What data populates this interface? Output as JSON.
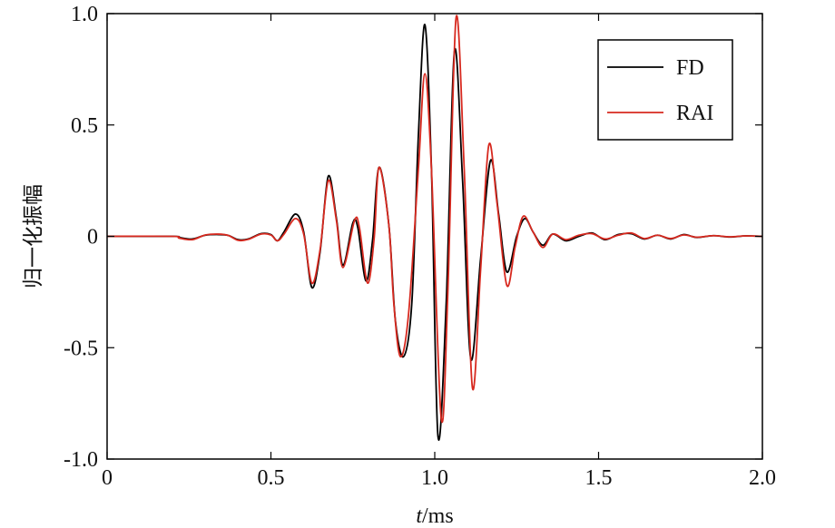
{
  "chart_data": {
    "type": "line",
    "title": "",
    "xlabel_var": "t",
    "xlabel_unit": "/ms",
    "ylabel": "归一化振幅",
    "xlim": [
      0,
      2.0
    ],
    "ylim": [
      -1.0,
      1.0
    ],
    "x_ticks": [
      0,
      0.5,
      1.0,
      1.5,
      2.0
    ],
    "x_tick_labels": [
      "0",
      "0.5",
      "1.0",
      "1.5",
      "2.0"
    ],
    "y_ticks": [
      -1.0,
      -0.5,
      0,
      0.5,
      1.0
    ],
    "y_tick_labels": [
      "-1.0",
      "-0.5",
      "0",
      "0.5",
      "1.0"
    ],
    "grid": false,
    "legend_position": "top-right",
    "series": [
      {
        "name": "FD",
        "color": "#000000",
        "points": [
          [
            0.0,
            0.0
          ],
          [
            0.2,
            0.0
          ],
          [
            0.22,
            -0.005
          ],
          [
            0.26,
            -0.012
          ],
          [
            0.3,
            0.005
          ],
          [
            0.34,
            0.008
          ],
          [
            0.37,
            0.004
          ],
          [
            0.4,
            -0.015
          ],
          [
            0.43,
            -0.012
          ],
          [
            0.47,
            0.012
          ],
          [
            0.5,
            0.008
          ],
          [
            0.52,
            -0.02
          ],
          [
            0.54,
            0.02
          ],
          [
            0.575,
            0.1
          ],
          [
            0.6,
            0.02
          ],
          [
            0.625,
            -0.23
          ],
          [
            0.65,
            -0.07
          ],
          [
            0.675,
            0.27
          ],
          [
            0.7,
            0.08
          ],
          [
            0.72,
            -0.13
          ],
          [
            0.75,
            0.06
          ],
          [
            0.765,
            0.04
          ],
          [
            0.79,
            -0.2
          ],
          [
            0.81,
            -0.02
          ],
          [
            0.83,
            0.31
          ],
          [
            0.86,
            0.05
          ],
          [
            0.88,
            -0.38
          ],
          [
            0.905,
            -0.54
          ],
          [
            0.93,
            -0.3
          ],
          [
            0.95,
            0.45
          ],
          [
            0.97,
            0.95
          ],
          [
            0.99,
            0.3
          ],
          [
            1.01,
            -0.9
          ],
          [
            1.035,
            -0.3
          ],
          [
            1.06,
            0.83
          ],
          [
            1.085,
            0.25
          ],
          [
            1.11,
            -0.55
          ],
          [
            1.14,
            -0.1
          ],
          [
            1.17,
            0.34
          ],
          [
            1.195,
            0.1
          ],
          [
            1.22,
            -0.16
          ],
          [
            1.25,
            0.0
          ],
          [
            1.275,
            0.08
          ],
          [
            1.3,
            0.02
          ],
          [
            1.33,
            -0.04
          ],
          [
            1.36,
            0.01
          ],
          [
            1.4,
            -0.02
          ],
          [
            1.44,
            0.0
          ],
          [
            1.48,
            0.015
          ],
          [
            1.52,
            -0.015
          ],
          [
            1.56,
            0.008
          ],
          [
            1.6,
            0.012
          ],
          [
            1.64,
            -0.012
          ],
          [
            1.68,
            0.005
          ],
          [
            1.72,
            -0.012
          ],
          [
            1.76,
            0.008
          ],
          [
            1.8,
            -0.005
          ],
          [
            1.85,
            0.003
          ],
          [
            1.9,
            -0.003
          ],
          [
            1.95,
            0.002
          ],
          [
            2.0,
            0.0
          ]
        ]
      },
      {
        "name": "RAI",
        "color": "#d7291f",
        "points": [
          [
            0.0,
            0.0
          ],
          [
            0.2,
            0.0
          ],
          [
            0.22,
            -0.008
          ],
          [
            0.26,
            -0.015
          ],
          [
            0.3,
            0.006
          ],
          [
            0.34,
            0.01
          ],
          [
            0.37,
            0.004
          ],
          [
            0.4,
            -0.018
          ],
          [
            0.43,
            -0.014
          ],
          [
            0.47,
            0.01
          ],
          [
            0.5,
            0.006
          ],
          [
            0.52,
            -0.02
          ],
          [
            0.54,
            0.01
          ],
          [
            0.575,
            0.08
          ],
          [
            0.6,
            0.01
          ],
          [
            0.625,
            -0.21
          ],
          [
            0.65,
            -0.06
          ],
          [
            0.675,
            0.25
          ],
          [
            0.7,
            0.07
          ],
          [
            0.72,
            -0.14
          ],
          [
            0.755,
            0.07
          ],
          [
            0.77,
            0.04
          ],
          [
            0.795,
            -0.21
          ],
          [
            0.815,
            -0.01
          ],
          [
            0.83,
            0.31
          ],
          [
            0.86,
            0.05
          ],
          [
            0.875,
            -0.3
          ],
          [
            0.895,
            -0.54
          ],
          [
            0.92,
            -0.35
          ],
          [
            0.95,
            0.3
          ],
          [
            0.97,
            0.73
          ],
          [
            0.99,
            0.3
          ],
          [
            1.02,
            -0.82
          ],
          [
            1.04,
            -0.25
          ],
          [
            1.065,
            0.98
          ],
          [
            1.09,
            0.3
          ],
          [
            1.115,
            -0.68
          ],
          [
            1.14,
            -0.15
          ],
          [
            1.165,
            0.41
          ],
          [
            1.19,
            0.15
          ],
          [
            1.22,
            -0.22
          ],
          [
            1.245,
            -0.05
          ],
          [
            1.27,
            0.09
          ],
          [
            1.3,
            0.02
          ],
          [
            1.33,
            -0.05
          ],
          [
            1.36,
            0.01
          ],
          [
            1.4,
            -0.015
          ],
          [
            1.44,
            0.005
          ],
          [
            1.48,
            0.012
          ],
          [
            1.52,
            -0.012
          ],
          [
            1.56,
            0.005
          ],
          [
            1.6,
            0.015
          ],
          [
            1.64,
            -0.01
          ],
          [
            1.68,
            0.005
          ],
          [
            1.72,
            -0.01
          ],
          [
            1.76,
            0.006
          ],
          [
            1.8,
            -0.004
          ],
          [
            1.85,
            0.003
          ],
          [
            1.9,
            -0.002
          ],
          [
            1.95,
            0.002
          ],
          [
            2.0,
            0.0
          ]
        ]
      }
    ]
  }
}
